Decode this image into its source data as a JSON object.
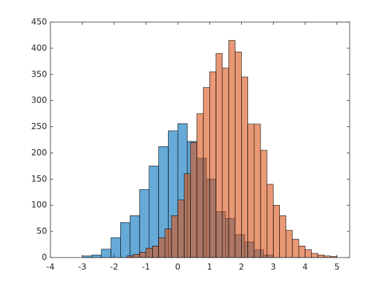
{
  "chart_data": {
    "type": "histogram",
    "series": [
      {
        "color": "#0072bd",
        "bins": [
          -3.0,
          -2.7,
          -2.4,
          -2.1,
          -1.8,
          -1.5,
          -1.2,
          -0.9,
          -0.6,
          -0.3,
          0,
          0.3,
          0.6,
          0.9,
          1.2,
          1.5,
          1.8,
          2.1,
          2.4,
          2.7,
          3.0
        ],
        "values": [
          3,
          5,
          16,
          38,
          67,
          80,
          130,
          175,
          212,
          242,
          256,
          222,
          190,
          150,
          88,
          75,
          44,
          30,
          15,
          5
        ]
      },
      {
        "color": "#d95319",
        "bins": [
          -1.6,
          -1.4,
          -1.2,
          -1.0,
          -0.8,
          -0.6,
          -0.4,
          -0.2,
          0,
          0.2,
          0.4,
          0.6,
          0.8,
          1.0,
          1.2,
          1.4,
          1.6,
          1.8,
          2.0,
          2.2,
          2.4,
          2.6,
          2.8,
          3.0,
          3.2,
          3.4,
          3.6,
          3.8,
          4.0,
          4.2,
          4.4,
          4.6,
          4.8,
          5.0
        ],
        "values": [
          3,
          6,
          10,
          18,
          22,
          38,
          55,
          80,
          110,
          160,
          220,
          275,
          325,
          355,
          390,
          362,
          415,
          393,
          345,
          255,
          255,
          205,
          140,
          100,
          80,
          52,
          35,
          22,
          15,
          8,
          5,
          3,
          2
        ]
      }
    ],
    "xlim": [
      -4,
      5.4
    ],
    "xticks": [
      -4,
      -3,
      -2,
      -1,
      0,
      1,
      2,
      3,
      4,
      5
    ],
    "ylim": [
      0,
      450
    ],
    "yticks": [
      0,
      50,
      100,
      150,
      200,
      250,
      300,
      350,
      400,
      450
    ]
  }
}
